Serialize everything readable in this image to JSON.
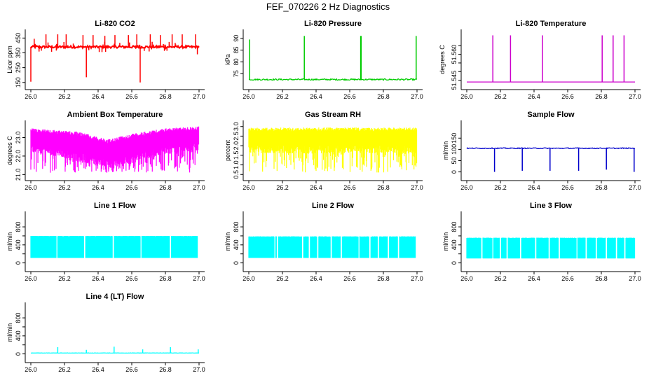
{
  "figure": {
    "title": "FEF_070226  2 Hz Diagnostics"
  },
  "chart_data": [
    {
      "id": "co2",
      "type": "line",
      "title": "Li-820 CO2",
      "ylabel": "Licor ppm",
      "color": "#ff0000",
      "xlim": [
        26.0,
        27.0
      ],
      "ylim": [
        130,
        480
      ],
      "xticks": [
        "26.0",
        "26.2",
        "26.4",
        "26.6",
        "26.8",
        "27.0"
      ],
      "yticks": [
        150,
        250,
        350,
        450
      ],
      "baseline": 390,
      "noise": 8,
      "band": "line",
      "spikes_up": [
        [
          26.02,
          445
        ],
        [
          26.09,
          475
        ],
        [
          26.16,
          475
        ],
        [
          26.21,
          475
        ],
        [
          26.31,
          470
        ],
        [
          26.37,
          470
        ],
        [
          26.44,
          465
        ],
        [
          26.5,
          470
        ],
        [
          26.58,
          470
        ],
        [
          26.63,
          475
        ],
        [
          26.71,
          475
        ],
        [
          26.77,
          470
        ],
        [
          26.84,
          475
        ],
        [
          26.9,
          475
        ],
        [
          26.98,
          475
        ]
      ],
      "spikes_down": [
        [
          26.0,
          155
        ],
        [
          26.33,
          185
        ],
        [
          26.65,
          150
        ],
        [
          26.99,
          340
        ]
      ]
    },
    {
      "id": "pressure",
      "type": "line",
      "title": "Li-820 Pressure",
      "ylabel": "kPa",
      "color": "#00cc00",
      "xlim": [
        26.0,
        27.0
      ],
      "ylim": [
        70,
        92
      ],
      "xticks": [
        "26.0",
        "26.2",
        "26.4",
        "26.6",
        "26.8",
        "27.0"
      ],
      "yticks": [
        75,
        80,
        85,
        90
      ],
      "baseline": 72.5,
      "noise": 0.3,
      "band": "line",
      "spikes_up": [
        [
          26.005,
          89.5
        ],
        [
          26.33,
          91
        ],
        [
          26.665,
          91
        ],
        [
          26.668,
          91
        ],
        [
          26.995,
          91
        ]
      ],
      "spikes_down": []
    },
    {
      "id": "temperature",
      "type": "line",
      "title": "Li-820 Temperature",
      "ylabel": "degrees C",
      "color": "#cc00cc",
      "xlim": [
        26.0,
        27.0
      ],
      "ylim": [
        51.542,
        51.572
      ],
      "xticks": [
        "26.0",
        "26.2",
        "26.4",
        "26.6",
        "26.8",
        "27.0"
      ],
      "ytick_labels": [
        "51.545",
        "51.560"
      ],
      "yticks_raw": [
        51.545,
        51.56
      ],
      "ytick_minor": [
        51.55,
        51.555,
        51.565
      ],
      "baseline": 51.544,
      "noise": 0,
      "band": "line",
      "spikes_up": [
        [
          26.155,
          51.571
        ],
        [
          26.26,
          51.571
        ],
        [
          26.45,
          51.571
        ],
        [
          26.805,
          51.571
        ],
        [
          26.87,
          51.571
        ],
        [
          26.935,
          51.571
        ]
      ],
      "spikes_down": []
    },
    {
      "id": "ambient",
      "type": "line",
      "title": "Ambient Box Temperature",
      "ylabel": "degrees C",
      "color": "#ff00ff",
      "xlim": [
        26.0,
        27.0
      ],
      "ylim": [
        20.9,
        23.7
      ],
      "xticks": [
        "26.0",
        "26.2",
        "26.4",
        "26.6",
        "26.8",
        "27.0"
      ],
      "yticks": [
        21.0,
        22.0,
        23.0
      ],
      "ytick_labels": [
        "21.0",
        "22.0",
        "23.0"
      ],
      "band": "fill",
      "upper": [
        [
          26.0,
          23.5
        ],
        [
          26.3,
          23.3
        ],
        [
          26.45,
          22.9
        ],
        [
          26.6,
          23.2
        ],
        [
          26.8,
          23.5
        ],
        [
          27.0,
          23.6
        ]
      ],
      "lower": [
        [
          26.0,
          22.2
        ],
        [
          26.2,
          21.9
        ],
        [
          26.45,
          21.3
        ],
        [
          26.6,
          21.6
        ],
        [
          26.8,
          22.1
        ],
        [
          27.0,
          22.3
        ]
      ],
      "min_spike": 21.1
    },
    {
      "id": "rh",
      "type": "line",
      "title": "Gas Stream RH",
      "ylabel": "percent",
      "color": "#ffff00",
      "xlim": [
        26.0,
        27.0
      ],
      "ylim": [
        0.4,
        3.1
      ],
      "xticks": [
        "26.0",
        "26.2",
        "26.4",
        "26.6",
        "26.8",
        "27.0"
      ],
      "yticks": [
        0.5,
        1.0,
        1.5,
        2.0,
        2.5,
        3.0
      ],
      "ytick_labels": [
        "0.5",
        "1.0",
        "1.5",
        "2.0",
        "2.5",
        "3.0"
      ],
      "band": "fill",
      "upper": [
        [
          26.0,
          2.95
        ],
        [
          27.0,
          2.95
        ]
      ],
      "lower": [
        [
          26.0,
          1.6
        ],
        [
          27.0,
          1.6
        ]
      ],
      "min_spike": 0.55
    },
    {
      "id": "sample",
      "type": "line",
      "title": "Sample Flow",
      "ylabel": "ml/min",
      "color": "#0000cc",
      "xlim": [
        26.0,
        27.0
      ],
      "ylim": [
        -20,
        210
      ],
      "xticks": [
        "26.0",
        "26.2",
        "26.4",
        "26.6",
        "26.8",
        "27.0"
      ],
      "yticks": [
        0,
        50,
        100,
        150
      ],
      "baseline": 105,
      "noise": 2,
      "band": "line",
      "spikes_up": [],
      "spikes_down": [
        [
          26.165,
          0
        ],
        [
          26.33,
          5
        ],
        [
          26.495,
          5
        ],
        [
          26.665,
          5
        ],
        [
          26.83,
          10
        ],
        [
          26.995,
          0
        ]
      ]
    },
    {
      "id": "line1",
      "type": "line",
      "title": "Line 1 Flow",
      "ylabel": "ml/min",
      "color": "#00ffff",
      "xlim": [
        26.0,
        27.0
      ],
      "ylim": [
        -100,
        1050
      ],
      "xticks": [
        "26.0",
        "26.2",
        "26.4",
        "26.6",
        "26.8",
        "27.0"
      ],
      "yticks": [
        0,
        400,
        800
      ],
      "yticks_minor": [
        200,
        600
      ],
      "band": "fill",
      "upper": [
        [
          26.0,
          600
        ],
        [
          27.0,
          600
        ]
      ],
      "lower": [
        [
          26.0,
          110
        ],
        [
          27.0,
          110
        ]
      ],
      "gaps": [
        26.155,
        26.32,
        26.49,
        26.655,
        26.83,
        26.995
      ]
    },
    {
      "id": "line2",
      "type": "line",
      "title": "Line 2 Flow",
      "ylabel": "ml/min",
      "color": "#00ffff",
      "xlim": [
        26.0,
        27.0
      ],
      "ylim": [
        -100,
        1050
      ],
      "xticks": [
        "26.0",
        "26.2",
        "26.4",
        "26.6",
        "26.8",
        "27.0"
      ],
      "yticks": [
        0,
        400,
        800
      ],
      "yticks_minor": [
        200,
        600
      ],
      "band": "fill",
      "upper": [
        [
          26.0,
          590
        ],
        [
          27.0,
          590
        ]
      ],
      "lower": [
        [
          26.0,
          110
        ],
        [
          27.0,
          110
        ]
      ],
      "gaps": [
        26.155,
        26.17,
        26.32,
        26.36,
        26.41,
        26.49,
        26.55,
        26.655,
        26.72,
        26.77,
        26.83,
        26.89,
        26.995
      ]
    },
    {
      "id": "line3",
      "type": "line",
      "title": "Line 3 Flow",
      "ylabel": "ml/min",
      "color": "#00ffff",
      "xlim": [
        26.0,
        27.0
      ],
      "ylim": [
        -100,
        1050
      ],
      "xticks": [
        "26.0",
        "26.2",
        "26.4",
        "26.6",
        "26.8",
        "27.0"
      ],
      "yticks": [
        0,
        400,
        800
      ],
      "yticks_minor": [
        200,
        600
      ],
      "band": "fill",
      "upper": [
        [
          26.0,
          560
        ],
        [
          27.0,
          560
        ]
      ],
      "lower": [
        [
          26.0,
          100
        ],
        [
          27.0,
          100
        ]
      ],
      "gaps": [
        26.09,
        26.155,
        26.2,
        26.24,
        26.32,
        26.41,
        26.49,
        26.55,
        26.655,
        26.71,
        26.77,
        26.83,
        26.89,
        26.94
      ]
    },
    {
      "id": "line4",
      "type": "line",
      "title": "Line 4 (LT) Flow",
      "ylabel": "ml/min",
      "color": "#00ffff",
      "xlim": [
        26.0,
        27.0
      ],
      "ylim": [
        -100,
        1050
      ],
      "xticks": [
        "26.0",
        "26.2",
        "26.4",
        "26.6",
        "26.8",
        "27.0"
      ],
      "yticks": [
        0,
        400,
        800
      ],
      "yticks_minor": [
        200,
        600
      ],
      "baseline": 20,
      "noise": 3,
      "band": "line",
      "spikes_up": [
        [
          26.16,
          150
        ],
        [
          26.33,
          90
        ],
        [
          26.495,
          160
        ],
        [
          26.665,
          100
        ],
        [
          26.83,
          150
        ],
        [
          26.995,
          100
        ]
      ],
      "spikes_down": []
    }
  ]
}
